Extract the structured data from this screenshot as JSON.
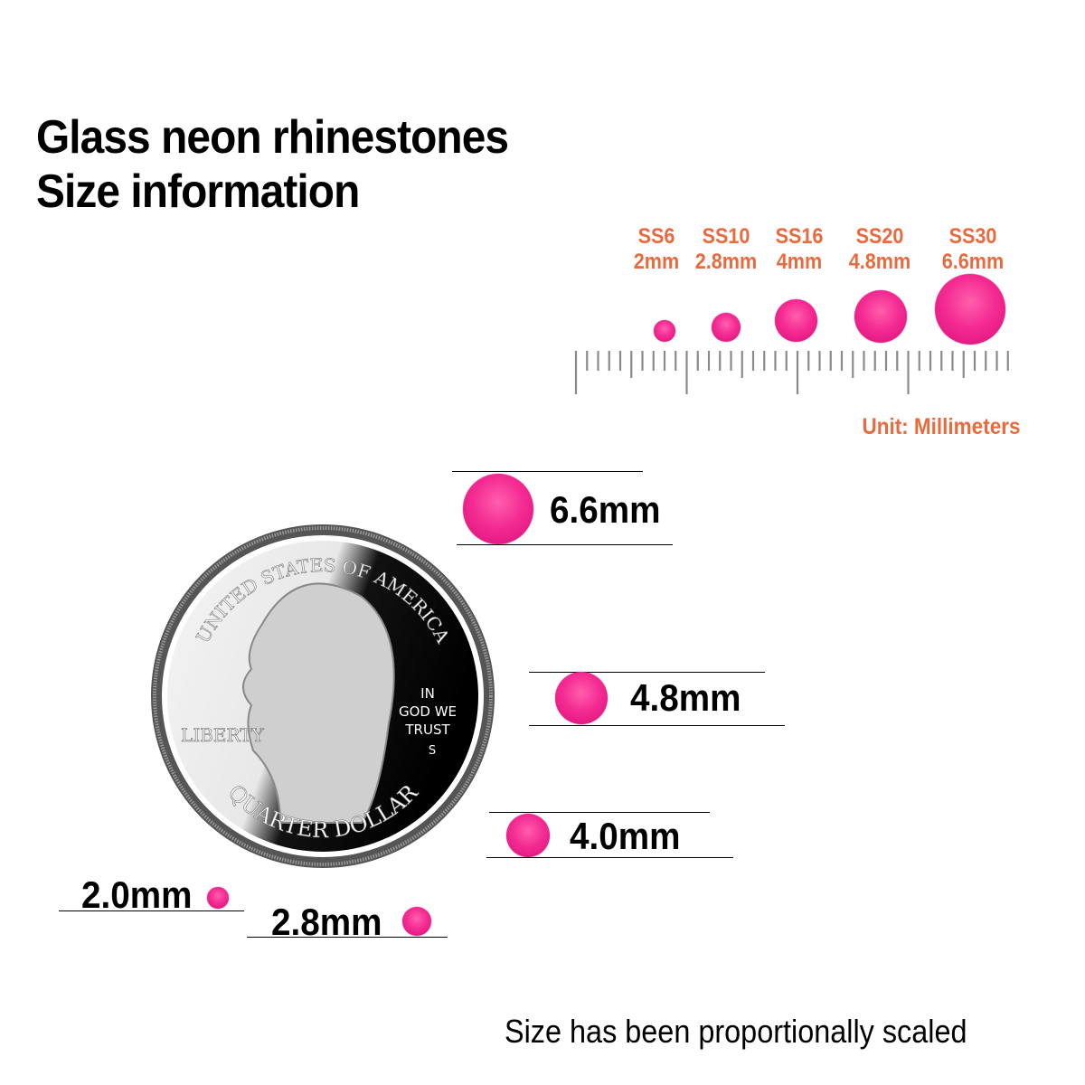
{
  "title": {
    "line1": "Glass neon rhinestones",
    "line2": "Size information"
  },
  "size_chart": {
    "items": [
      {
        "code": "SS6",
        "size": "2mm"
      },
      {
        "code": "SS10",
        "size": "2.8mm"
      },
      {
        "code": "SS16",
        "size": "4mm"
      },
      {
        "code": "SS20",
        "size": "4.8mm"
      },
      {
        "code": "SS30",
        "size": "6.6mm"
      }
    ],
    "unit_label": "Unit: Millimeters",
    "label_color": "#ea6a3e",
    "stone_color": "#f42c92"
  },
  "comparison": {
    "labels": [
      "6.6mm",
      "4.8mm",
      "4.0mm",
      "2.0mm",
      "2.8mm"
    ],
    "coin": {
      "top_text": "UNITED STATES OF AMERICA",
      "bottom_text": "QUARTER DOLLAR",
      "left_text": "LIBERTY",
      "motto": [
        "IN",
        "GOD WE",
        "TRUST"
      ],
      "mint_mark": "S"
    }
  },
  "footer": "Size has been proportionally scaled"
}
